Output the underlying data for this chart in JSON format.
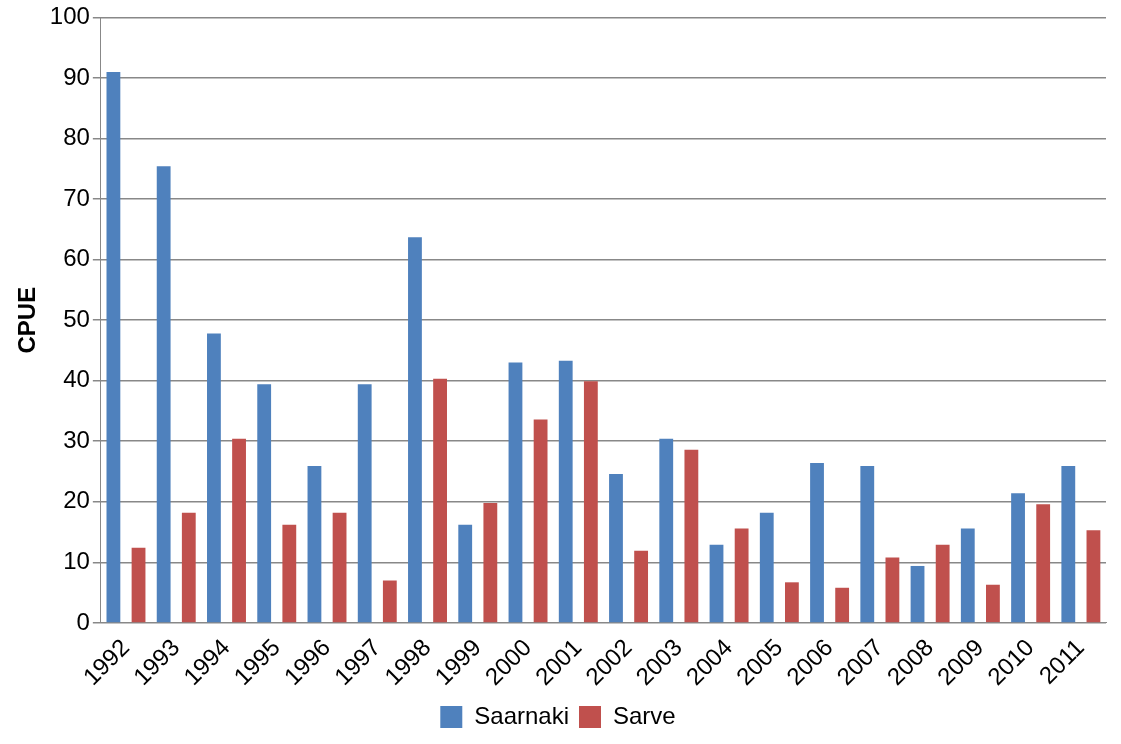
{
  "chart_data": {
    "type": "bar",
    "ylabel": "CPUE",
    "categories": [
      "1992",
      "1993",
      "1994",
      "1995",
      "1996",
      "1997",
      "1998",
      "1999",
      "2000",
      "2001",
      "2002",
      "2003",
      "2004",
      "2005",
      "2006",
      "2007",
      "2008",
      "2009",
      "2010",
      "2011"
    ],
    "series": [
      {
        "name": "Saarnaki",
        "color": "#4f81bd",
        "values": [
          91.0,
          75.4,
          47.8,
          39.4,
          25.9,
          39.4,
          63.7,
          16.2,
          43.0,
          43.3,
          24.6,
          30.4,
          12.9,
          18.2,
          26.4,
          25.9,
          9.4,
          15.6,
          21.4,
          25.9
        ]
      },
      {
        "name": "Sarve",
        "color": "#c0504d",
        "values": [
          12.4,
          18.2,
          30.4,
          16.2,
          18.2,
          7.0,
          40.3,
          19.8,
          33.6,
          39.9,
          11.9,
          28.6,
          15.6,
          6.7,
          5.8,
          10.8,
          12.9,
          6.3,
          19.6,
          15.3
        ]
      }
    ],
    "ylim": [
      0,
      100
    ],
    "yticks": [
      0,
      10,
      20,
      30,
      40,
      50,
      60,
      70,
      80,
      90,
      100
    ],
    "grid": "y",
    "legend": "bottom"
  }
}
